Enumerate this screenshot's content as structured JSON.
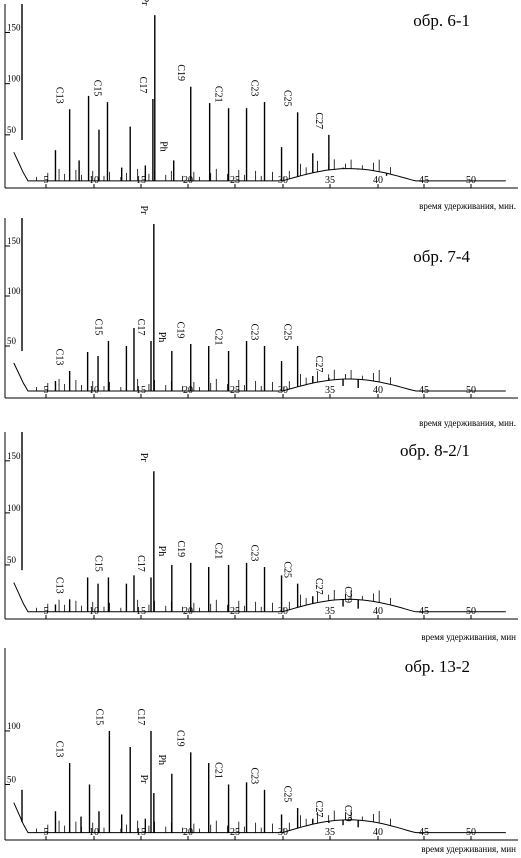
{
  "chart_data": [
    {
      "type": "line",
      "sample_label": "обр. 6-1",
      "xlabel": "время удерживания, мин.",
      "xlim": [
        0,
        55
      ],
      "ylim": [
        0,
        170
      ],
      "x_ticks": [
        "5",
        "10",
        "15",
        "20",
        "25",
        "30",
        "35",
        "40",
        "45",
        "50"
      ],
      "y_ticks": [
        "50",
        "100",
        "150"
      ],
      "peaks": [
        {
          "x": 1.0,
          "y": 190
        },
        {
          "x": 6.0,
          "y": 35
        },
        {
          "x": 7.5,
          "y": 75,
          "label": "C13"
        },
        {
          "x": 8.5,
          "y": 25
        },
        {
          "x": 9.5,
          "y": 88
        },
        {
          "x": 10.6,
          "y": 55
        },
        {
          "x": 11.5,
          "y": 82,
          "label": "C15"
        },
        {
          "x": 13.0,
          "y": 18
        },
        {
          "x": 13.9,
          "y": 58
        },
        {
          "x": 15.5,
          "y": 20
        },
        {
          "x": 16.3,
          "y": 85,
          "label": "C17"
        },
        {
          "x": 16.5,
          "y": 167,
          "label": "Pr"
        },
        {
          "x": 18.5,
          "y": 25,
          "label": "Ph"
        },
        {
          "x": 20.3,
          "y": 97,
          "label": "C19"
        },
        {
          "x": 22.3,
          "y": 81
        },
        {
          "x": 24.3,
          "y": 76,
          "label": "C21"
        },
        {
          "x": 26.2,
          "y": 76
        },
        {
          "x": 28.1,
          "y": 82,
          "label": "C23"
        },
        {
          "x": 29.9,
          "y": 38
        },
        {
          "x": 31.6,
          "y": 72,
          "label": "C25"
        },
        {
          "x": 33.2,
          "y": 32
        },
        {
          "x": 34.9,
          "y": 50,
          "label": "C27"
        },
        {
          "x": 36.4,
          "y": 18
        },
        {
          "x": 38.0,
          "y": 16
        },
        {
          "x": 41.0,
          "y": 10
        }
      ]
    },
    {
      "type": "line",
      "sample_label": "обр. 7-4",
      "xlabel": "время удерживания, мин.",
      "xlim": [
        0,
        55
      ],
      "ylim": [
        0,
        170
      ],
      "x_ticks": [
        "5",
        "10",
        "15",
        "20",
        "25",
        "30",
        "35",
        "40",
        "45",
        "50"
      ],
      "y_ticks": [
        "50",
        "100",
        "150"
      ],
      "peaks": [
        {
          "x": 1.0,
          "y": 200
        },
        {
          "x": 6.0,
          "y": 15
        },
        {
          "x": 7.5,
          "y": 25,
          "label": "C13"
        },
        {
          "x": 9.4,
          "y": 44
        },
        {
          "x": 10.5,
          "y": 40
        },
        {
          "x": 11.6,
          "y": 55,
          "label": "C15"
        },
        {
          "x": 13.5,
          "y": 50
        },
        {
          "x": 14.3,
          "y": 68
        },
        {
          "x": 16.1,
          "y": 55,
          "label": "C17"
        },
        {
          "x": 16.4,
          "y": 172,
          "label": "Pr"
        },
        {
          "x": 18.3,
          "y": 45,
          "label": "Ph"
        },
        {
          "x": 20.3,
          "y": 52,
          "label": "C19"
        },
        {
          "x": 22.2,
          "y": 50
        },
        {
          "x": 24.3,
          "y": 45,
          "label": "C21"
        },
        {
          "x": 26.2,
          "y": 55
        },
        {
          "x": 28.1,
          "y": 50,
          "label": "C23"
        },
        {
          "x": 29.9,
          "y": 35
        },
        {
          "x": 31.6,
          "y": 50,
          "label": "C25"
        },
        {
          "x": 33.2,
          "y": 20
        },
        {
          "x": 34.9,
          "y": 18,
          "label": "C27"
        },
        {
          "x": 36.4,
          "y": 10
        },
        {
          "x": 38.0,
          "y": 8
        }
      ]
    },
    {
      "type": "line",
      "sample_label": "обр. 8-2/1",
      "xlabel": "время удерживания, мин",
      "xlim": [
        0,
        55
      ],
      "ylim": [
        0,
        170
      ],
      "x_ticks": [
        "5",
        "10",
        "15",
        "20",
        "25",
        "30",
        "35",
        "40",
        "45",
        "50"
      ],
      "y_ticks": [
        "50",
        "100",
        "150"
      ],
      "peaks": [
        {
          "x": 1.0,
          "y": 200
        },
        {
          "x": 6.0,
          "y": 12
        },
        {
          "x": 7.5,
          "y": 17,
          "label": "C13"
        },
        {
          "x": 9.4,
          "y": 38
        },
        {
          "x": 10.5,
          "y": 32
        },
        {
          "x": 11.6,
          "y": 38,
          "label": "C15"
        },
        {
          "x": 13.5,
          "y": 32
        },
        {
          "x": 14.3,
          "y": 40
        },
        {
          "x": 16.1,
          "y": 38,
          "label": "C17"
        },
        {
          "x": 16.4,
          "y": 140,
          "label": "Pr"
        },
        {
          "x": 18.3,
          "y": 50,
          "label": "Ph"
        },
        {
          "x": 20.3,
          "y": 52,
          "label": "C19"
        },
        {
          "x": 22.2,
          "y": 48
        },
        {
          "x": 24.3,
          "y": 50,
          "label": "C21"
        },
        {
          "x": 26.2,
          "y": 52
        },
        {
          "x": 28.1,
          "y": 48,
          "label": "C23"
        },
        {
          "x": 29.9,
          "y": 40
        },
        {
          "x": 31.6,
          "y": 32,
          "label": "C25"
        },
        {
          "x": 33.2,
          "y": 20
        },
        {
          "x": 34.9,
          "y": 16,
          "label": "C27"
        },
        {
          "x": 36.4,
          "y": 10
        },
        {
          "x": 38.0,
          "y": 8,
          "label": "C29"
        }
      ]
    },
    {
      "type": "line",
      "sample_label": "обр. 13-2",
      "xlabel": "время удерживания, мин",
      "xlim": [
        0,
        55
      ],
      "ylim": [
        0,
        170
      ],
      "x_ticks": [
        "5",
        "10",
        "15",
        "20",
        "25",
        "30",
        "35",
        "40",
        "45",
        "50"
      ],
      "y_ticks": [
        "50",
        "100"
      ],
      "peaks": [
        {
          "x": 1.0,
          "y": 15
        },
        {
          "x": 6.0,
          "y": 25
        },
        {
          "x": 7.5,
          "y": 70,
          "label": "C13"
        },
        {
          "x": 8.7,
          "y": 20
        },
        {
          "x": 9.6,
          "y": 50
        },
        {
          "x": 10.6,
          "y": 25
        },
        {
          "x": 11.7,
          "y": 100,
          "label": "C15"
        },
        {
          "x": 13.0,
          "y": 22
        },
        {
          "x": 13.9,
          "y": 85
        },
        {
          "x": 15.5,
          "y": 18
        },
        {
          "x": 16.1,
          "y": 100,
          "label": "C17"
        },
        {
          "x": 16.4,
          "y": 42,
          "label": "Pr"
        },
        {
          "x": 18.3,
          "y": 60,
          "label": "Ph"
        },
        {
          "x": 20.3,
          "y": 80,
          "label": "C19"
        },
        {
          "x": 22.2,
          "y": 70
        },
        {
          "x": 24.3,
          "y": 50,
          "label": "C21"
        },
        {
          "x": 26.2,
          "y": 52
        },
        {
          "x": 28.1,
          "y": 45,
          "label": "C23"
        },
        {
          "x": 29.9,
          "y": 22
        },
        {
          "x": 31.6,
          "y": 28,
          "label": "C25"
        },
        {
          "x": 33.2,
          "y": 18
        },
        {
          "x": 34.9,
          "y": 14,
          "label": "C27"
        },
        {
          "x": 36.4,
          "y": 12
        },
        {
          "x": 38.0,
          "y": 10,
          "label": "C29"
        }
      ]
    }
  ]
}
